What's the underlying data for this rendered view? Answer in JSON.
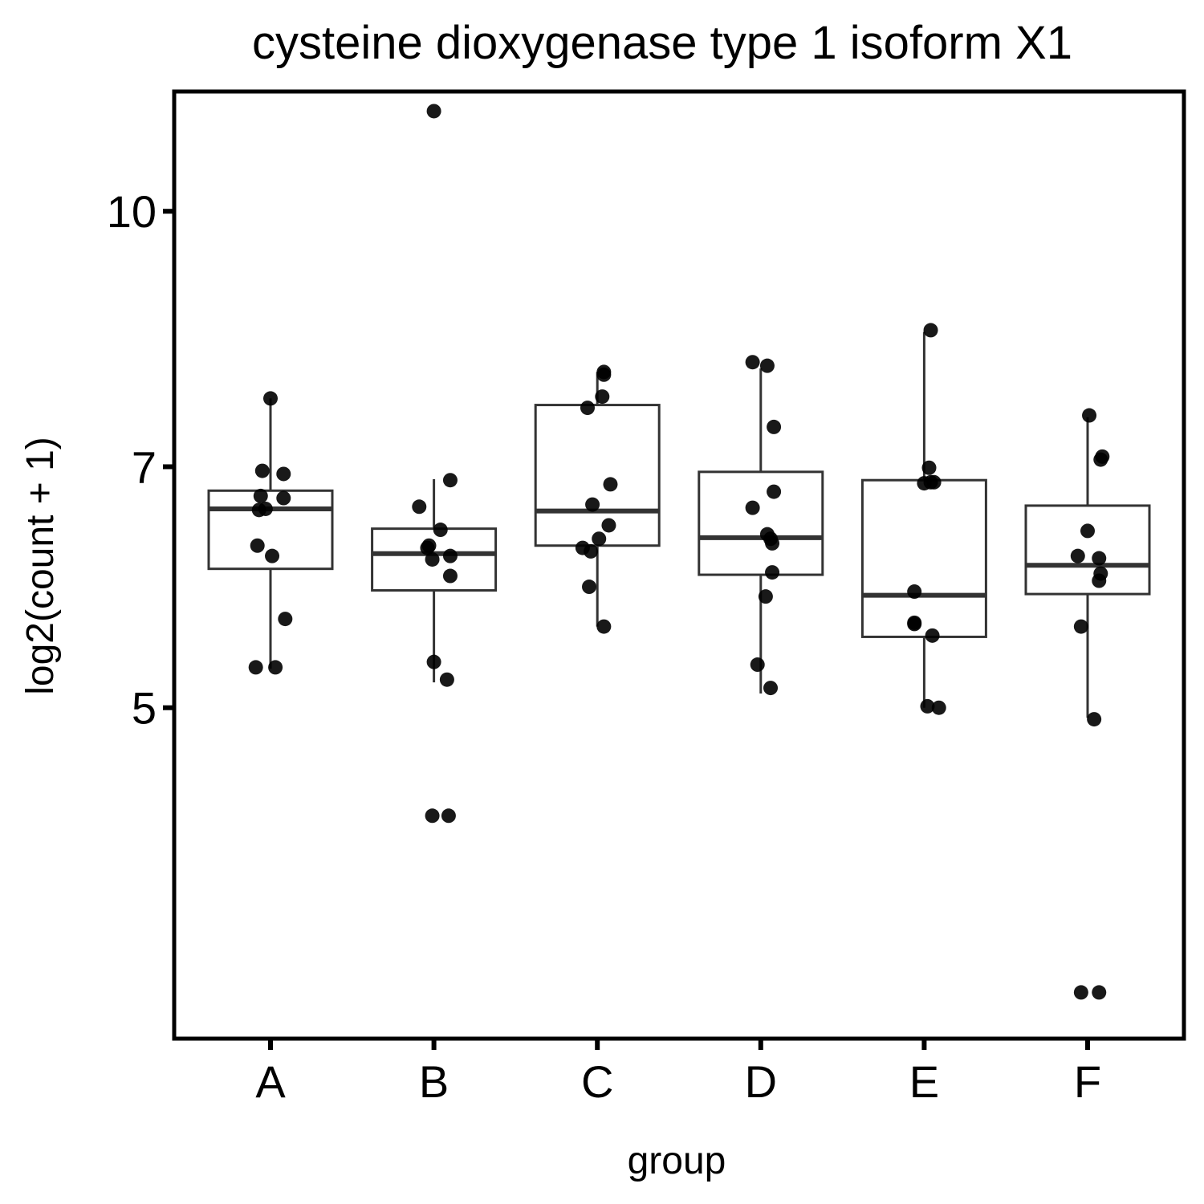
{
  "chart_data": {
    "type": "boxplot",
    "title": "cysteine dioxygenase type 1 isoform X1",
    "xlabel": "group",
    "ylabel": "log2(count + 1)",
    "scale": "log",
    "yticks": [
      {
        "value": 5,
        "label": "5"
      },
      {
        "value": 7,
        "label": "7"
      },
      {
        "value": 10,
        "label": "10"
      }
    ],
    "ylim": [
      3.15,
      11.82
    ],
    "grid": false,
    "categories": [
      "A",
      "B",
      "C",
      "D",
      "E",
      "F"
    ],
    "boxes": [
      {
        "name": "A",
        "whisker_low": 5.28,
        "q1": 6.07,
        "median": 6.6,
        "q3": 6.77,
        "whisker_high": 7.7
      },
      {
        "name": "B",
        "whisker_low": 5.18,
        "q1": 5.89,
        "median": 6.2,
        "q3": 6.42,
        "whisker_high": 6.88
      },
      {
        "name": "C",
        "whisker_low": 5.6,
        "q1": 6.27,
        "median": 6.58,
        "q3": 7.63,
        "whisker_high": 7.99
      },
      {
        "name": "D",
        "whisker_low": 5.1,
        "q1": 6.02,
        "median": 6.34,
        "q3": 6.95,
        "whisker_high": 8.03
      },
      {
        "name": "E",
        "whisker_low": 5.0,
        "q1": 5.52,
        "median": 5.85,
        "q3": 6.87,
        "whisker_high": 8.45
      },
      {
        "name": "F",
        "whisker_low": 4.93,
        "q1": 5.86,
        "median": 6.1,
        "q3": 6.63,
        "whisker_high": 7.5
      }
    ],
    "points": [
      {
        "group": "A",
        "jitter": 0.0,
        "y": 7.7
      },
      {
        "group": "A",
        "jitter": -0.05,
        "y": 6.96
      },
      {
        "group": "A",
        "jitter": 0.08,
        "y": 6.93
      },
      {
        "group": "A",
        "jitter": -0.06,
        "y": 6.72
      },
      {
        "group": "A",
        "jitter": 0.08,
        "y": 6.7
      },
      {
        "group": "A",
        "jitter": -0.03,
        "y": 6.6
      },
      {
        "group": "A",
        "jitter": -0.07,
        "y": 6.59
      },
      {
        "group": "A",
        "jitter": -0.08,
        "y": 6.27
      },
      {
        "group": "A",
        "jitter": 0.01,
        "y": 6.18
      },
      {
        "group": "A",
        "jitter": 0.09,
        "y": 5.66
      },
      {
        "group": "A",
        "jitter": -0.09,
        "y": 5.29
      },
      {
        "group": "A",
        "jitter": 0.03,
        "y": 5.29
      },
      {
        "group": "B",
        "jitter": 0.0,
        "y": 11.5
      },
      {
        "group": "B",
        "jitter": 0.1,
        "y": 6.87
      },
      {
        "group": "B",
        "jitter": -0.09,
        "y": 6.62
      },
      {
        "group": "B",
        "jitter": 0.04,
        "y": 6.41
      },
      {
        "group": "B",
        "jitter": -0.03,
        "y": 6.27
      },
      {
        "group": "B",
        "jitter": -0.04,
        "y": 6.25
      },
      {
        "group": "B",
        "jitter": 0.1,
        "y": 6.18
      },
      {
        "group": "B",
        "jitter": -0.01,
        "y": 6.15
      },
      {
        "group": "B",
        "jitter": 0.1,
        "y": 6.01
      },
      {
        "group": "B",
        "jitter": 0.0,
        "y": 5.33
      },
      {
        "group": "B",
        "jitter": 0.08,
        "y": 5.2
      },
      {
        "group": "B",
        "jitter": -0.01,
        "y": 4.3
      },
      {
        "group": "B",
        "jitter": 0.09,
        "y": 4.3
      },
      {
        "group": "C",
        "jitter": 0.04,
        "y": 7.99
      },
      {
        "group": "C",
        "jitter": 0.04,
        "y": 7.96
      },
      {
        "group": "C",
        "jitter": 0.03,
        "y": 7.72
      },
      {
        "group": "C",
        "jitter": -0.06,
        "y": 7.6
      },
      {
        "group": "C",
        "jitter": 0.08,
        "y": 6.83
      },
      {
        "group": "C",
        "jitter": -0.03,
        "y": 6.64
      },
      {
        "group": "C",
        "jitter": 0.07,
        "y": 6.45
      },
      {
        "group": "C",
        "jitter": 0.01,
        "y": 6.33
      },
      {
        "group": "C",
        "jitter": -0.09,
        "y": 6.25
      },
      {
        "group": "C",
        "jitter": -0.04,
        "y": 6.22
      },
      {
        "group": "C",
        "jitter": -0.05,
        "y": 5.92
      },
      {
        "group": "C",
        "jitter": 0.04,
        "y": 5.6
      },
      {
        "group": "D",
        "jitter": -0.05,
        "y": 8.1
      },
      {
        "group": "D",
        "jitter": 0.04,
        "y": 8.06
      },
      {
        "group": "D",
        "jitter": 0.08,
        "y": 7.4
      },
      {
        "group": "D",
        "jitter": 0.08,
        "y": 6.76
      },
      {
        "group": "D",
        "jitter": -0.05,
        "y": 6.61
      },
      {
        "group": "D",
        "jitter": 0.04,
        "y": 6.37
      },
      {
        "group": "D",
        "jitter": 0.06,
        "y": 6.33
      },
      {
        "group": "D",
        "jitter": 0.07,
        "y": 6.29
      },
      {
        "group": "D",
        "jitter": 0.07,
        "y": 6.04
      },
      {
        "group": "D",
        "jitter": 0.03,
        "y": 5.84
      },
      {
        "group": "D",
        "jitter": -0.02,
        "y": 5.31
      },
      {
        "group": "D",
        "jitter": 0.06,
        "y": 5.14
      },
      {
        "group": "E",
        "jitter": 0.04,
        "y": 8.47
      },
      {
        "group": "E",
        "jitter": 0.03,
        "y": 6.99
      },
      {
        "group": "E",
        "jitter": 0.04,
        "y": 6.85
      },
      {
        "group": "E",
        "jitter": 0.06,
        "y": 6.85
      },
      {
        "group": "E",
        "jitter": 0.0,
        "y": 6.84
      },
      {
        "group": "E",
        "jitter": -0.06,
        "y": 5.88
      },
      {
        "group": "E",
        "jitter": -0.06,
        "y": 5.63
      },
      {
        "group": "E",
        "jitter": -0.06,
        "y": 5.62
      },
      {
        "group": "E",
        "jitter": 0.05,
        "y": 5.53
      },
      {
        "group": "E",
        "jitter": 0.02,
        "y": 5.01
      },
      {
        "group": "E",
        "jitter": 0.09,
        "y": 5.0
      },
      {
        "group": "F",
        "jitter": 0.01,
        "y": 7.52
      },
      {
        "group": "F",
        "jitter": 0.09,
        "y": 7.1
      },
      {
        "group": "F",
        "jitter": 0.08,
        "y": 7.07
      },
      {
        "group": "F",
        "jitter": 0.0,
        "y": 6.4
      },
      {
        "group": "F",
        "jitter": -0.06,
        "y": 6.18
      },
      {
        "group": "F",
        "jitter": 0.07,
        "y": 6.16
      },
      {
        "group": "F",
        "jitter": 0.08,
        "y": 6.03
      },
      {
        "group": "F",
        "jitter": 0.07,
        "y": 5.97
      },
      {
        "group": "F",
        "jitter": -0.04,
        "y": 5.6
      },
      {
        "group": "F",
        "jitter": 0.04,
        "y": 4.92
      },
      {
        "group": "F",
        "jitter": -0.04,
        "y": 3.36
      },
      {
        "group": "F",
        "jitter": 0.07,
        "y": 3.36
      }
    ]
  }
}
